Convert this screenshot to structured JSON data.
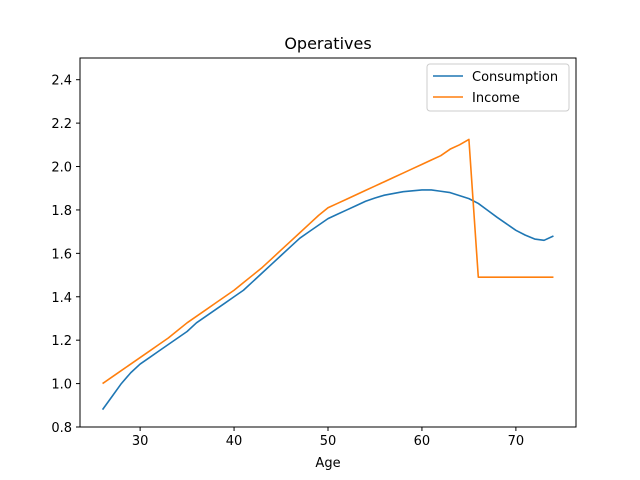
{
  "chart_data": {
    "type": "line",
    "title": "Operatives",
    "xlabel": "Age",
    "ylabel": "",
    "xlim": [
      23.6,
      76.4
    ],
    "ylim": [
      0.8,
      2.5
    ],
    "xticks": [
      30,
      40,
      50,
      60,
      70
    ],
    "yticks": [
      0.8,
      1.0,
      1.2,
      1.4,
      1.6,
      1.8,
      2.0,
      2.2,
      2.4
    ],
    "ytick_labels": [
      "0.8",
      "1.0",
      "1.2",
      "1.4",
      "1.6",
      "1.8",
      "2.0",
      "2.2",
      "2.4"
    ],
    "grid": false,
    "legend_position": "top-right",
    "x": [
      26,
      27,
      28,
      29,
      30,
      31,
      32,
      33,
      34,
      35,
      36,
      37,
      38,
      39,
      40,
      41,
      42,
      43,
      44,
      45,
      46,
      47,
      48,
      49,
      50,
      51,
      52,
      53,
      54,
      55,
      56,
      57,
      58,
      59,
      60,
      61,
      62,
      63,
      64,
      65,
      66,
      67,
      68,
      69,
      70,
      71,
      72,
      73,
      74
    ],
    "series": [
      {
        "name": "Consumption",
        "color": "#1f77b4",
        "values": [
          0.88,
          0.94,
          1.0,
          1.05,
          1.09,
          1.12,
          1.15,
          1.18,
          1.21,
          1.24,
          1.28,
          1.31,
          1.34,
          1.37,
          1.4,
          1.43,
          1.47,
          1.51,
          1.55,
          1.59,
          1.63,
          1.67,
          1.7,
          1.73,
          1.76,
          1.78,
          1.8,
          1.82,
          1.84,
          1.855,
          1.868,
          1.876,
          1.884,
          1.888,
          1.892,
          1.892,
          1.886,
          1.88,
          1.866,
          1.852,
          1.83,
          1.798,
          1.766,
          1.736,
          1.706,
          1.684,
          1.666,
          1.66,
          1.68
        ]
      },
      {
        "name": "Income",
        "color": "#ff7f0e",
        "values": [
          1.0,
          1.03,
          1.06,
          1.09,
          1.12,
          1.15,
          1.18,
          1.21,
          1.245,
          1.28,
          1.31,
          1.34,
          1.37,
          1.4,
          1.43,
          1.465,
          1.5,
          1.535,
          1.575,
          1.615,
          1.655,
          1.695,
          1.735,
          1.775,
          1.81,
          1.83,
          1.85,
          1.87,
          1.89,
          1.91,
          1.93,
          1.95,
          1.97,
          1.99,
          2.01,
          2.03,
          2.05,
          2.08,
          2.1,
          2.125,
          1.49,
          1.49,
          1.49,
          1.49,
          1.49,
          1.49,
          1.49,
          1.49,
          1.49
        ]
      }
    ]
  }
}
